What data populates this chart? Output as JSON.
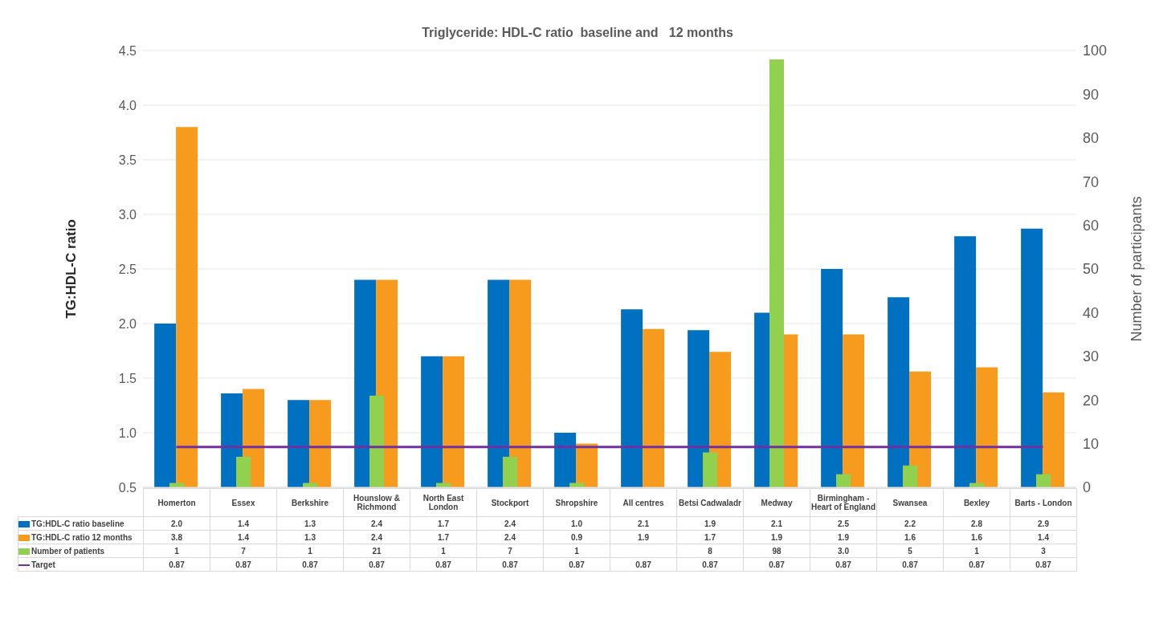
{
  "chart_data": {
    "type": "bar",
    "title": "Triglyceride: HDL-C ratio  baseline and   12 months",
    "ylabel": "TG:HDL-C ratio",
    "y2label": "Number of participants",
    "categories": [
      "Homerton",
      "Essex",
      "Berkshire",
      "Hounslow & Richmond",
      "North East London",
      "Stockport",
      "Shropshire",
      "All centres",
      "Betsi Cadwaladr",
      "Medway",
      "Birmingham - Heart of England",
      "Swansea",
      "Bexley",
      "Barts - London"
    ],
    "series": [
      {
        "name": "TG:HDL-C ratio baseline",
        "color": "#0070c0",
        "values": [
          2.0,
          1.36,
          1.3,
          2.4,
          1.7,
          2.4,
          1.0,
          2.13,
          1.94,
          2.1,
          2.5,
          2.24,
          2.8,
          2.87
        ],
        "value_labels": [
          "2.0",
          "1.4",
          "1.3",
          "2.4",
          "1.7",
          "2.4",
          "1.0",
          "2.1",
          "1.9",
          "2.1",
          "2.5",
          "2.2",
          "2.8",
          "2.9"
        ]
      },
      {
        "name": "TG:HDL-C ratio 12 months",
        "color": "#f79b1f",
        "values": [
          3.8,
          1.4,
          1.3,
          2.4,
          1.7,
          2.4,
          0.9,
          1.95,
          1.74,
          1.9,
          1.9,
          1.56,
          1.6,
          1.37
        ],
        "value_labels": [
          "3.8",
          "1.4",
          "1.3",
          "2.4",
          "1.7",
          "2.4",
          "0.9",
          "1.9",
          "1.7",
          "1.9",
          "1.9",
          "1.6",
          "1.6",
          "1.4"
        ]
      },
      {
        "name": "Number of patients",
        "color": "#92d050",
        "axis": "y2",
        "values": [
          1,
          7,
          1,
          21,
          1,
          7,
          1,
          null,
          8,
          98,
          3,
          5,
          1,
          3
        ],
        "value_labels": [
          "1",
          "7",
          "1",
          "21",
          "1",
          "7",
          "1",
          null,
          "8",
          "98",
          "3.0",
          "5",
          "1",
          "3"
        ]
      },
      {
        "name": "Target",
        "type": "line",
        "color": "#7030a0",
        "values": [
          0.87,
          0.87,
          0.87,
          0.87,
          0.87,
          0.87,
          0.87,
          0.87,
          0.87,
          0.87,
          0.87,
          0.87,
          0.87,
          0.87
        ],
        "value_labels": [
          "0.87",
          "0.87",
          "0.87",
          "0.87",
          "0.87",
          "0.87",
          "0.87",
          "0.87",
          "0.87",
          "0.87",
          "0.87",
          "0.87",
          "0.87",
          "0.87"
        ]
      }
    ],
    "ylim": [
      0.5,
      4.5
    ],
    "yticks": [
      {
        "value": 0.5,
        "label": "0.5"
      },
      {
        "value": 1,
        "label": "1.0"
      },
      {
        "value": 1.5,
        "label": "1.5"
      },
      {
        "value": 2,
        "label": "2.0"
      },
      {
        "value": 2.5,
        "label": "2.5"
      },
      {
        "value": 3,
        "label": "3.0"
      },
      {
        "value": 3.5,
        "label": "3.5"
      },
      {
        "value": 4,
        "label": "4.0"
      },
      {
        "value": 4.5,
        "label": "4.5"
      }
    ],
    "y2lim": [
      0,
      100
    ],
    "y2ticks": [
      0,
      10,
      20,
      30,
      40,
      50,
      60,
      70,
      80,
      90,
      100
    ],
    "grid": "y",
    "legend": "bottom",
    "marker": "none"
  }
}
